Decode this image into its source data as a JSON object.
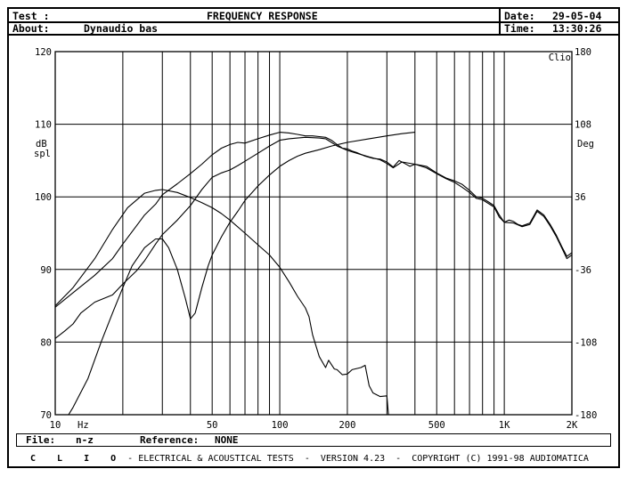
{
  "header": {
    "test_label": "Test :",
    "title": "FREQUENCY RESPONSE",
    "about_label": "About:",
    "about_value": "Dynaudio bas",
    "date_label": "Date:",
    "date_value": "29-05-04",
    "time_label": "Time:",
    "time_value": "13:30:26"
  },
  "footer": {
    "file_label": "File:",
    "file_value": "n-z",
    "reference_label": "Reference:",
    "reference_value": "NONE"
  },
  "copyright": {
    "clio": "C L I O",
    "text": "- ELECTRICAL & ACOUSTICAL TESTS  -  VERSION 4.23  -  COPYRIGHT (C) 1991-98 AUDIOMATICA"
  },
  "chart_data": {
    "type": "line",
    "title": "FREQUENCY RESPONSE",
    "brand_label": "Clio",
    "x_scale": "log",
    "xlim": [
      10,
      2000
    ],
    "x_tick_labels": [
      {
        "value": 10,
        "label": "10"
      },
      {
        "value": 50,
        "label": "50"
      },
      {
        "value": 100,
        "label": "100"
      },
      {
        "value": 200,
        "label": "200"
      },
      {
        "value": 500,
        "label": "500"
      },
      {
        "value": 1000,
        "label": "1K"
      },
      {
        "value": 2000,
        "label": "2K"
      }
    ],
    "x_unit": "Hz",
    "ylim": [
      70,
      120
    ],
    "y_ticks": [
      70,
      80,
      90,
      100,
      110,
      120
    ],
    "y_label": [
      "dB",
      "spl"
    ],
    "y2lim": [
      -180,
      180
    ],
    "y2_ticks": [
      -180,
      -108,
      -36,
      36,
      108,
      180
    ],
    "y2_label": "Deg",
    "grid": true,
    "series": [
      {
        "points": [
          [
            10,
            85.0
          ],
          [
            12,
            87.5
          ],
          [
            15,
            91.5
          ],
          [
            18,
            95.5
          ],
          [
            21,
            98.5
          ],
          [
            25,
            100.5
          ],
          [
            28,
            100.9
          ],
          [
            30,
            101.0
          ],
          [
            35,
            100.6
          ],
          [
            40,
            99.9
          ],
          [
            45,
            99.2
          ],
          [
            50,
            98.5
          ],
          [
            55,
            97.7
          ],
          [
            60,
            96.8
          ],
          [
            70,
            95.0
          ],
          [
            80,
            93.4
          ],
          [
            90,
            92.0
          ],
          [
            100,
            90.3
          ],
          [
            110,
            88.3
          ],
          [
            120,
            86.3
          ],
          [
            130,
            84.7
          ],
          [
            135,
            83.5
          ],
          [
            140,
            81.0
          ],
          [
            150,
            78.0
          ],
          [
            160,
            76.5
          ],
          [
            165,
            77.5
          ],
          [
            175,
            76.3
          ],
          [
            180,
            76.2
          ],
          [
            190,
            75.5
          ],
          [
            200,
            75.6
          ],
          [
            210,
            76.2
          ],
          [
            230,
            76.5
          ],
          [
            240,
            76.8
          ],
          [
            250,
            74.0
          ],
          [
            260,
            73.0
          ],
          [
            280,
            72.5
          ],
          [
            300,
            72.6
          ],
          [
            305,
            70.0
          ]
        ]
      },
      {
        "points": [
          [
            10,
            84.8
          ],
          [
            12,
            86.8
          ],
          [
            15,
            89.2
          ],
          [
            18,
            91.5
          ],
          [
            20,
            93.5
          ],
          [
            23,
            96.0
          ],
          [
            25,
            97.5
          ],
          [
            28,
            99.0
          ],
          [
            30,
            100.3
          ],
          [
            35,
            101.8
          ],
          [
            40,
            103.2
          ],
          [
            45,
            104.5
          ],
          [
            50,
            105.8
          ],
          [
            55,
            106.7
          ],
          [
            60,
            107.2
          ],
          [
            65,
            107.5
          ],
          [
            70,
            107.4
          ],
          [
            80,
            108.0
          ],
          [
            90,
            108.5
          ],
          [
            100,
            108.9
          ],
          [
            110,
            108.8
          ],
          [
            120,
            108.6
          ],
          [
            130,
            108.4
          ],
          [
            140,
            108.4
          ],
          [
            150,
            108.3
          ],
          [
            160,
            108.2
          ],
          [
            170,
            107.8
          ],
          [
            180,
            107.2
          ],
          [
            190,
            106.7
          ],
          [
            200,
            106.6
          ],
          [
            210,
            106.3
          ],
          [
            220,
            106.1
          ],
          [
            240,
            105.6
          ],
          [
            260,
            105.3
          ],
          [
            280,
            105.2
          ],
          [
            300,
            104.8
          ],
          [
            320,
            104.1
          ],
          [
            340,
            105.0
          ],
          [
            360,
            104.6
          ],
          [
            380,
            104.2
          ],
          [
            400,
            104.5
          ],
          [
            450,
            104.2
          ],
          [
            500,
            103.3
          ],
          [
            550,
            102.6
          ],
          [
            600,
            102.2
          ],
          [
            650,
            101.7
          ],
          [
            700,
            100.9
          ],
          [
            750,
            100.0
          ],
          [
            800,
            99.8
          ],
          [
            850,
            99.3
          ],
          [
            900,
            98.8
          ],
          [
            950,
            97.5
          ],
          [
            1000,
            96.5
          ],
          [
            1050,
            96.8
          ],
          [
            1100,
            96.6
          ],
          [
            1150,
            96.2
          ],
          [
            1200,
            96.0
          ],
          [
            1300,
            96.4
          ],
          [
            1400,
            98.2
          ],
          [
            1500,
            97.5
          ],
          [
            1600,
            96.2
          ],
          [
            1700,
            94.8
          ],
          [
            1800,
            93.2
          ],
          [
            1900,
            91.8
          ],
          [
            2000,
            92.3
          ]
        ]
      },
      {
        "points": [
          [
            10,
            80.5
          ],
          [
            11,
            81.5
          ],
          [
            12,
            82.5
          ],
          [
            13,
            84.0
          ],
          [
            15,
            85.5
          ],
          [
            18,
            86.5
          ],
          [
            20,
            88.0
          ],
          [
            23,
            89.8
          ],
          [
            25,
            91.2
          ],
          [
            28,
            93.5
          ],
          [
            30,
            94.8
          ],
          [
            35,
            96.8
          ],
          [
            40,
            98.8
          ],
          [
            45,
            101.0
          ],
          [
            50,
            102.7
          ],
          [
            55,
            103.3
          ],
          [
            60,
            103.7
          ],
          [
            65,
            104.3
          ],
          [
            70,
            104.9
          ],
          [
            80,
            106.0
          ],
          [
            90,
            107.0
          ],
          [
            100,
            107.8
          ],
          [
            110,
            108.0
          ],
          [
            120,
            108.1
          ],
          [
            130,
            108.2
          ],
          [
            150,
            108.1
          ],
          [
            160,
            108.0
          ],
          [
            170,
            107.5
          ],
          [
            180,
            107.0
          ],
          [
            200,
            106.4
          ],
          [
            220,
            106.0
          ],
          [
            250,
            105.5
          ],
          [
            280,
            105.1
          ],
          [
            300,
            104.6
          ],
          [
            320,
            104.0
          ],
          [
            350,
            104.8
          ],
          [
            400,
            104.5
          ],
          [
            450,
            104.0
          ],
          [
            500,
            103.2
          ],
          [
            550,
            102.5
          ],
          [
            600,
            102.0
          ],
          [
            650,
            101.3
          ],
          [
            700,
            100.6
          ],
          [
            750,
            99.8
          ],
          [
            800,
            99.6
          ],
          [
            900,
            98.6
          ],
          [
            950,
            97.2
          ],
          [
            1000,
            96.5
          ],
          [
            1100,
            96.4
          ],
          [
            1200,
            95.9
          ],
          [
            1300,
            96.2
          ],
          [
            1400,
            98.0
          ],
          [
            1500,
            97.3
          ],
          [
            1600,
            96.0
          ],
          [
            1700,
            94.6
          ],
          [
            1800,
            93.0
          ],
          [
            1900,
            91.5
          ],
          [
            2000,
            92.0
          ]
        ]
      },
      {
        "points": [
          [
            10,
            67
          ],
          [
            12,
            71
          ],
          [
            14,
            75
          ],
          [
            16,
            80
          ],
          [
            18,
            84
          ],
          [
            20,
            87.5
          ],
          [
            22,
            90.5
          ],
          [
            25,
            93.0
          ],
          [
            28,
            94.2
          ],
          [
            30,
            94.2
          ],
          [
            32,
            93.0
          ],
          [
            35,
            90.0
          ],
          [
            38,
            86.0
          ],
          [
            40,
            83.2
          ],
          [
            42,
            84.0
          ],
          [
            45,
            87.5
          ],
          [
            48,
            90.5
          ],
          [
            50,
            92.0
          ],
          [
            55,
            94.5
          ],
          [
            60,
            96.5
          ],
          [
            65,
            98.0
          ],
          [
            70,
            99.5
          ],
          [
            80,
            101.5
          ],
          [
            90,
            103.0
          ],
          [
            100,
            104.2
          ],
          [
            110,
            105.0
          ],
          [
            120,
            105.6
          ],
          [
            130,
            106.0
          ],
          [
            150,
            106.5
          ],
          [
            170,
            107.0
          ],
          [
            200,
            107.5
          ],
          [
            250,
            108.0
          ],
          [
            300,
            108.4
          ],
          [
            350,
            108.7
          ],
          [
            400,
            108.9
          ]
        ]
      }
    ]
  }
}
